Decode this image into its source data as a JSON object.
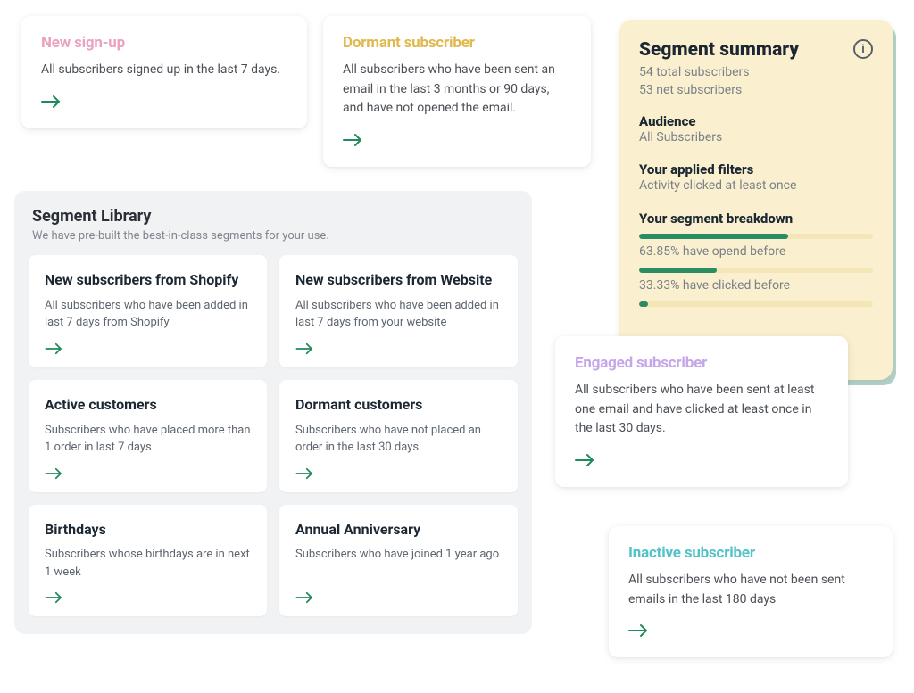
{
  "colors": {
    "arrow": "#1f8a5b",
    "summary_bg": "#faf0cf",
    "summary_shadow": "#2a8863",
    "progress_track": "#f5e6b8",
    "progress_fill": "#2a8d62",
    "title_pink": "#eaa2c0",
    "title_yellow": "#e0b84d",
    "title_purple": "#c6a6ea",
    "title_teal": "#53c3c9",
    "title_dark": "#1b2732"
  },
  "top_cards": {
    "new_signup": {
      "title": "New sign-up",
      "desc": "All subscribers signed up in the last 7 days.",
      "color_key": "title_pink"
    },
    "dormant": {
      "title": "Dormant subscriber",
      "desc": "All subscribers who have been sent an email in the last 3 months or 90 days, and have not opened the email.",
      "color_key": "title_yellow"
    }
  },
  "library": {
    "title": "Segment Library",
    "subtitle": "We have pre-built the best-in-class segments for your use.",
    "cards": [
      {
        "title": "New subscribers from Shopify",
        "desc": "All subscribers who have been added in last 7 days from Shopify"
      },
      {
        "title": "New subscribers from Website",
        "desc": "All subscribers who have been added in last 7 days from your website"
      },
      {
        "title": "Active customers",
        "desc": "Subscribers who have placed more than 1 order in last 7 days"
      },
      {
        "title": "Dormant customers",
        "desc": "Subscribers who have not placed an order in the last 30 days"
      },
      {
        "title": "Birthdays",
        "desc": "Subscribers whose birthdays are in next 1 week"
      },
      {
        "title": "Annual Anniversary",
        "desc": "Subscribers who have joined 1 year ago"
      }
    ]
  },
  "summary": {
    "title": "Segment summary",
    "total": "54 total subscribers",
    "net": "53 net subscribers",
    "audience_label": "Audience",
    "audience_value": "All Subscribers",
    "filters_label": "Your applied filters",
    "filters_value": "Activity clicked at least once",
    "breakdown_label": "Your segment breakdown",
    "breakdown": [
      {
        "pct": 63.85,
        "label": "63.85% have opend before"
      },
      {
        "pct": 33.33,
        "label": "33.33% have clicked before"
      },
      {
        "pct": 4,
        "label": ""
      }
    ]
  },
  "side_cards": {
    "engaged": {
      "title": "Engaged subscriber",
      "desc": "All subscribers who have been sent at least one email and have clicked at least once in the last 30 days.",
      "color_key": "title_purple"
    },
    "inactive": {
      "title": "Inactive subscriber",
      "desc": "All subscribers who have not been sent emails in the last 180 days",
      "color_key": "title_teal"
    }
  }
}
